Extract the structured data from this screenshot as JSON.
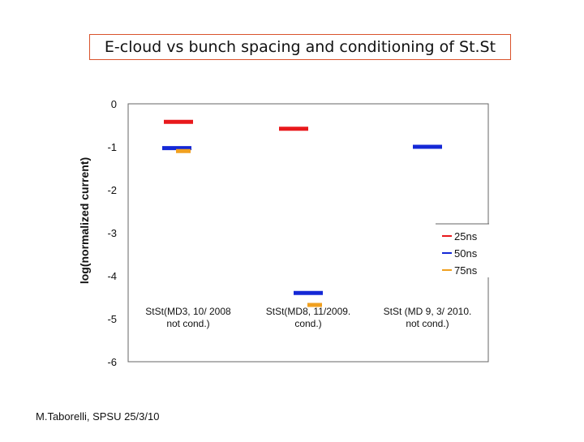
{
  "header": {
    "title": "E-cloud vs bunch spacing and conditioning of St.St"
  },
  "footer": {
    "credit": "M.Taborelli, SPSU 25/3/10"
  },
  "chart_data": {
    "type": "scatter",
    "title": "E-cloud vs bunch spacing and conditioning of St.St",
    "xlabel": "",
    "ylabel": "log(normalized current)",
    "ylim": [
      -6,
      0
    ],
    "yticks": [
      0,
      -1,
      -2,
      -3,
      -4,
      -5,
      -6
    ],
    "categories": [
      [
        "StSt(MD3, 10/ 2008",
        "not cond.)"
      ],
      [
        "StSt(MD8, 11/2009.",
        "cond.)"
      ],
      [
        "StSt (MD 9, 3/ 2010.",
        "not cond.)"
      ]
    ],
    "series": [
      {
        "name": "25ns",
        "color": "#e8191c",
        "values": [
          -0.42,
          -0.58,
          null
        ]
      },
      {
        "name": "50ns",
        "color": "#1428d6",
        "values": [
          -1.03,
          -4.4,
          -1.0
        ]
      },
      {
        "name": "75ns",
        "color": "#f0a020",
        "values": [
          -1.1,
          -4.68,
          null
        ]
      }
    ],
    "legend_position": "right",
    "grid": false
  }
}
